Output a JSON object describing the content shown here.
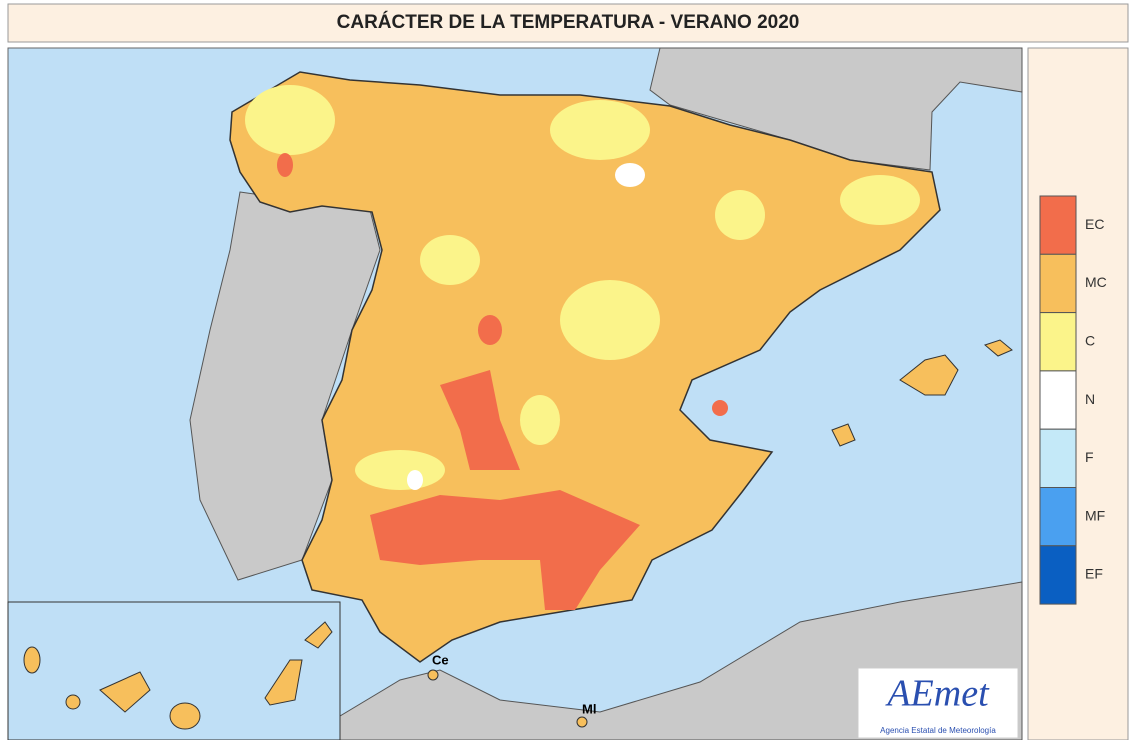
{
  "title": "CARÁCTER DE LA TEMPERATURA - VERANO 2020",
  "legend": [
    {
      "label": "EC",
      "color": "#f26d4b"
    },
    {
      "label": "MC",
      "color": "#f7bf5c"
    },
    {
      "label": "C",
      "color": "#fbf48a"
    },
    {
      "label": "N",
      "color": "#ffffff"
    },
    {
      "label": "F",
      "color": "#c4e9f8"
    },
    {
      "label": "MF",
      "color": "#4aa0f0"
    },
    {
      "label": "EF",
      "color": "#0a5fc2"
    }
  ],
  "places": [
    "Ce",
    "Ml"
  ],
  "logo": {
    "name": "AEmet",
    "subtitle": "Agencia Estatal de Meteorología"
  }
}
